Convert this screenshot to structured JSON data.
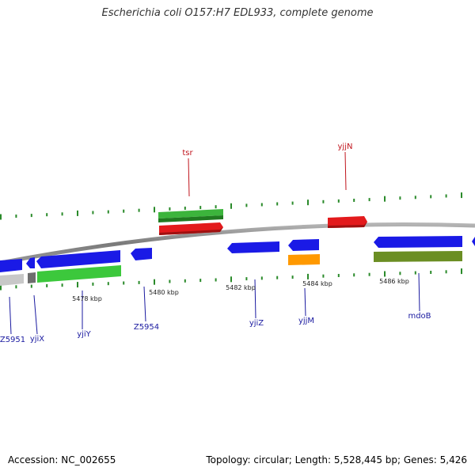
{
  "title": "Escherichia coli O157:H7 EDL933, complete genome",
  "footer": {
    "accession": "Accession: NC_002655",
    "genome_info": "Topology: circular; Length: 5,528,445 bp; Genes: 5,426"
  },
  "colors": {
    "backbone": "#8c8c8c",
    "forward_gene": "#e31a1c",
    "reverse_gene": "#1a1ae6",
    "forward_cds": "#3cb43c",
    "reverse_cds": "#3cc83c",
    "rna": "#ff9900",
    "other": "#6b8e23",
    "pseudo": "#c8c8c8",
    "tick": "#2a8a2a",
    "forward_label": "#c0141c",
    "reverse_label": "#1a1aa0"
  },
  "scale_ticks": [
    "5478 kbp",
    "5480 kbp",
    "5482 kbp",
    "5484 kbp",
    "5486 kbp"
  ],
  "gene_labels": {
    "tsr": "tsr",
    "yjjN": "yjjN",
    "Z5951": "Z5951",
    "yjiX": "yjiX",
    "yjiY": "yjiY",
    "Z5954": "Z5954",
    "yjiZ": "yjiZ",
    "yjjM": "yjjM",
    "mdoB": "mdoB"
  }
}
